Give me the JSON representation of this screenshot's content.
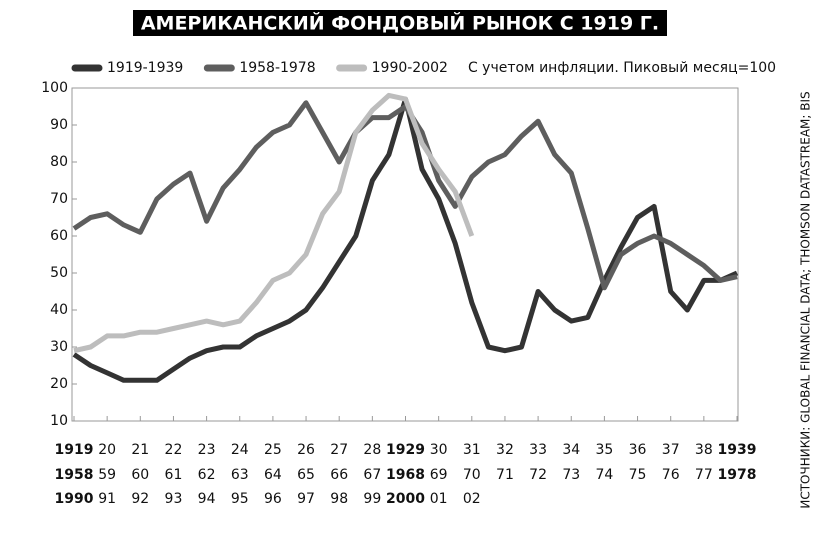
{
  "chart_data": {
    "type": "line",
    "title": "АМЕРИКАНСКИЙ ФОНДОВЫЙ РЫНОК С 1919 Г.",
    "note": "С учетом инфляции. Пиковый месяц=100",
    "source": "ИСТОЧНИКИ: GLOBAL FINANCIAL DATA; THOMSON DATASTREAM; BIS",
    "x": [
      1919,
      1919.5,
      1920,
      1920.5,
      1921,
      1921.5,
      1922,
      1922.5,
      1923,
      1923.5,
      1924,
      1924.5,
      1925,
      1925.5,
      1926,
      1926.5,
      1927,
      1927.5,
      1928,
      1928.5,
      1929,
      1929.5,
      1930,
      1930.5,
      1931,
      1931.5,
      1932,
      1932.5,
      1933,
      1933.5,
      1934,
      1934.5,
      1935,
      1935.5,
      1936,
      1936.5,
      1937,
      1937.5,
      1938,
      1938.5,
      1939
    ],
    "xlim": [
      1919,
      1939
    ],
    "ylim": [
      10,
      100
    ],
    "yticks": [
      10,
      20,
      30,
      40,
      50,
      60,
      70,
      80,
      90,
      100
    ],
    "grid": false,
    "xtick_rows": [
      [
        {
          "value": 1919,
          "label": "1919"
        },
        {
          "value": 1920,
          "label": "20"
        },
        {
          "value": 1921,
          "label": "21"
        },
        {
          "value": 1922,
          "label": "22"
        },
        {
          "value": 1923,
          "label": "23"
        },
        {
          "value": 1924,
          "label": "24"
        },
        {
          "value": 1925,
          "label": "25"
        },
        {
          "value": 1926,
          "label": "26"
        },
        {
          "value": 1927,
          "label": "27"
        },
        {
          "value": 1928,
          "label": "28"
        },
        {
          "value": 1929,
          "label": "1929"
        },
        {
          "value": 1930,
          "label": "30"
        },
        {
          "value": 1931,
          "label": "31"
        },
        {
          "value": 1932,
          "label": "32"
        },
        {
          "value": 1933,
          "label": "33"
        },
        {
          "value": 1934,
          "label": "34"
        },
        {
          "value": 1935,
          "label": "35"
        },
        {
          "value": 1936,
          "label": "36"
        },
        {
          "value": 1937,
          "label": "37"
        },
        {
          "value": 1938,
          "label": "38"
        },
        {
          "value": 1939,
          "label": "1939"
        }
      ],
      [
        {
          "value": 1919,
          "label": "1958"
        },
        {
          "value": 1920,
          "label": "59"
        },
        {
          "value": 1921,
          "label": "60"
        },
        {
          "value": 1922,
          "label": "61"
        },
        {
          "value": 1923,
          "label": "62"
        },
        {
          "value": 1924,
          "label": "63"
        },
        {
          "value": 1925,
          "label": "64"
        },
        {
          "value": 1926,
          "label": "65"
        },
        {
          "value": 1927,
          "label": "66"
        },
        {
          "value": 1928,
          "label": "67"
        },
        {
          "value": 1929,
          "label": "1968"
        },
        {
          "value": 1930,
          "label": "69"
        },
        {
          "value": 1931,
          "label": "70"
        },
        {
          "value": 1932,
          "label": "71"
        },
        {
          "value": 1933,
          "label": "72"
        },
        {
          "value": 1934,
          "label": "73"
        },
        {
          "value": 1935,
          "label": "74"
        },
        {
          "value": 1936,
          "label": "75"
        },
        {
          "value": 1937,
          "label": "76"
        },
        {
          "value": 1938,
          "label": "77"
        },
        {
          "value": 1939,
          "label": "1978"
        }
      ],
      [
        {
          "value": 1919,
          "label": "1990"
        },
        {
          "value": 1920,
          "label": "91"
        },
        {
          "value": 1921,
          "label": "92"
        },
        {
          "value": 1922,
          "label": "93"
        },
        {
          "value": 1923,
          "label": "94"
        },
        {
          "value": 1924,
          "label": "95"
        },
        {
          "value": 1925,
          "label": "96"
        },
        {
          "value": 1926,
          "label": "97"
        },
        {
          "value": 1927,
          "label": "98"
        },
        {
          "value": 1928,
          "label": "99"
        },
        {
          "value": 1929,
          "label": "2000"
        },
        {
          "value": 1930,
          "label": "01"
        },
        {
          "value": 1931,
          "label": "02"
        }
      ]
    ],
    "series": [
      {
        "name": "1919-1939",
        "color": "#333333",
        "values": [
          28,
          25,
          23,
          21,
          21,
          21,
          24,
          27,
          29,
          30,
          30,
          33,
          35,
          37,
          40,
          46,
          53,
          60,
          75,
          82,
          97,
          78,
          70,
          58,
          42,
          30,
          29,
          30,
          45,
          40,
          37,
          38,
          48,
          57,
          65,
          68,
          45,
          40,
          48,
          48,
          50
        ]
      },
      {
        "name": "1958-1978",
        "color": "#5e5e5e",
        "values": [
          62,
          65,
          66,
          63,
          61,
          70,
          74,
          77,
          64,
          73,
          78,
          84,
          88,
          90,
          96,
          88,
          80,
          88,
          92,
          92,
          95,
          88,
          75,
          68,
          76,
          80,
          82,
          87,
          91,
          82,
          77,
          62,
          46,
          55,
          58,
          60,
          58,
          55,
          52,
          48,
          49
        ]
      },
      {
        "name": "1990-2002",
        "color": "#bdbdbd",
        "values": [
          29,
          30,
          33,
          33,
          34,
          34,
          35,
          36,
          37,
          36,
          37,
          42,
          48,
          50,
          55,
          66,
          72,
          88,
          94,
          98,
          97,
          85,
          78,
          72,
          60,
          null,
          null,
          null,
          null,
          null,
          null,
          null,
          null,
          null,
          null,
          null,
          null,
          null,
          null,
          null,
          null
        ]
      }
    ]
  }
}
